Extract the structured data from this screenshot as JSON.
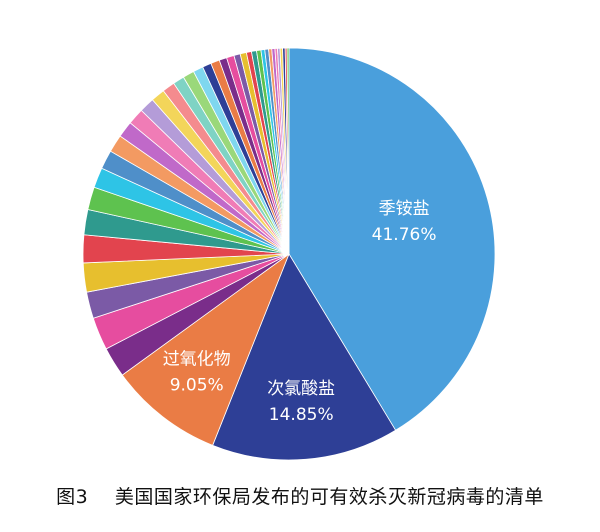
{
  "chart_data": {
    "type": "pie",
    "title": "",
    "start_angle_deg": 0,
    "direction": "clockwise",
    "slices": [
      {
        "label": "季铵盐",
        "value": 41.76,
        "display": "41.76%",
        "color": "#4a9fdc",
        "labeled": true
      },
      {
        "label": "次氯酸盐",
        "value": 14.85,
        "display": "14.85%",
        "color": "#2e3f96",
        "labeled": true
      },
      {
        "label": "过氧化物",
        "value": 9.05,
        "display": "9.05%",
        "color": "#ea7c45",
        "labeled": true
      },
      {
        "label": "",
        "value": 2.4,
        "color": "#7a2d8a",
        "labeled": false
      },
      {
        "label": "",
        "value": 2.6,
        "color": "#e64d9f",
        "labeled": false
      },
      {
        "label": "",
        "value": 2.1,
        "color": "#7b5aa6",
        "labeled": false
      },
      {
        "label": "",
        "value": 2.3,
        "color": "#e7bf2e",
        "labeled": false
      },
      {
        "label": "",
        "value": 2.2,
        "color": "#e2444e",
        "labeled": false
      },
      {
        "label": "",
        "value": 2.0,
        "color": "#2f9a8e",
        "labeled": false
      },
      {
        "label": "",
        "value": 1.8,
        "color": "#5ec24f",
        "labeled": false
      },
      {
        "label": "",
        "value": 1.6,
        "color": "#2ec4e6",
        "labeled": false
      },
      {
        "label": "",
        "value": 1.5,
        "color": "#4f8fc9",
        "labeled": false
      },
      {
        "label": "",
        "value": 1.4,
        "color": "#f39a62",
        "labeled": false
      },
      {
        "label": "",
        "value": 1.3,
        "color": "#c069c9",
        "labeled": false
      },
      {
        "label": "",
        "value": 1.3,
        "color": "#f07cb6",
        "labeled": false
      },
      {
        "label": "",
        "value": 1.2,
        "color": "#b49cd8",
        "labeled": false
      },
      {
        "label": "",
        "value": 1.1,
        "color": "#f3d55a",
        "labeled": false
      },
      {
        "label": "",
        "value": 1.0,
        "color": "#f48b8e",
        "labeled": false
      },
      {
        "label": "",
        "value": 0.9,
        "color": "#7fd3c4",
        "labeled": false
      },
      {
        "label": "",
        "value": 0.9,
        "color": "#9ad87a",
        "labeled": false
      },
      {
        "label": "",
        "value": 0.8,
        "color": "#7fd7ef",
        "labeled": false
      },
      {
        "label": "",
        "value": 0.7,
        "color": "#2e3f96",
        "labeled": false
      },
      {
        "label": "",
        "value": 0.7,
        "color": "#ea7c45",
        "labeled": false
      },
      {
        "label": "",
        "value": 0.6,
        "color": "#7a2d8a",
        "labeled": false
      },
      {
        "label": "",
        "value": 0.6,
        "color": "#e64d9f",
        "labeled": false
      },
      {
        "label": "",
        "value": 0.5,
        "color": "#7b5aa6",
        "labeled": false
      },
      {
        "label": "",
        "value": 0.5,
        "color": "#e7bf2e",
        "labeled": false
      },
      {
        "label": "",
        "value": 0.4,
        "color": "#e2444e",
        "labeled": false
      },
      {
        "label": "",
        "value": 0.4,
        "color": "#2f9a8e",
        "labeled": false
      },
      {
        "label": "",
        "value": 0.35,
        "color": "#5ec24f",
        "labeled": false
      },
      {
        "label": "",
        "value": 0.3,
        "color": "#2ec4e6",
        "labeled": false
      },
      {
        "label": "",
        "value": 0.3,
        "color": "#4f8fc9",
        "labeled": false
      },
      {
        "label": "",
        "value": 0.25,
        "color": "#f39a62",
        "labeled": false
      },
      {
        "label": "",
        "value": 0.25,
        "color": "#c069c9",
        "labeled": false
      },
      {
        "label": "",
        "value": 0.2,
        "color": "#f07cb6",
        "labeled": false
      },
      {
        "label": "",
        "value": 0.2,
        "color": "#b49cd8",
        "labeled": false
      },
      {
        "label": "",
        "value": 0.2,
        "color": "#f3d55a",
        "labeled": false
      },
      {
        "label": "",
        "value": 0.2,
        "color": "#2e3f96",
        "labeled": false
      },
      {
        "label": "",
        "value": 0.15,
        "color": "#e2444e",
        "labeled": false
      },
      {
        "label": "",
        "value": 0.15,
        "color": "#5ec24f",
        "labeled": false
      }
    ]
  },
  "caption": {
    "figure_number": "图3",
    "text": "美国国家环保局发布的可有效杀灭新冠病毒的清单"
  },
  "colors": {
    "label_on_dark": "#ffffff",
    "caption_text": "#111111"
  }
}
